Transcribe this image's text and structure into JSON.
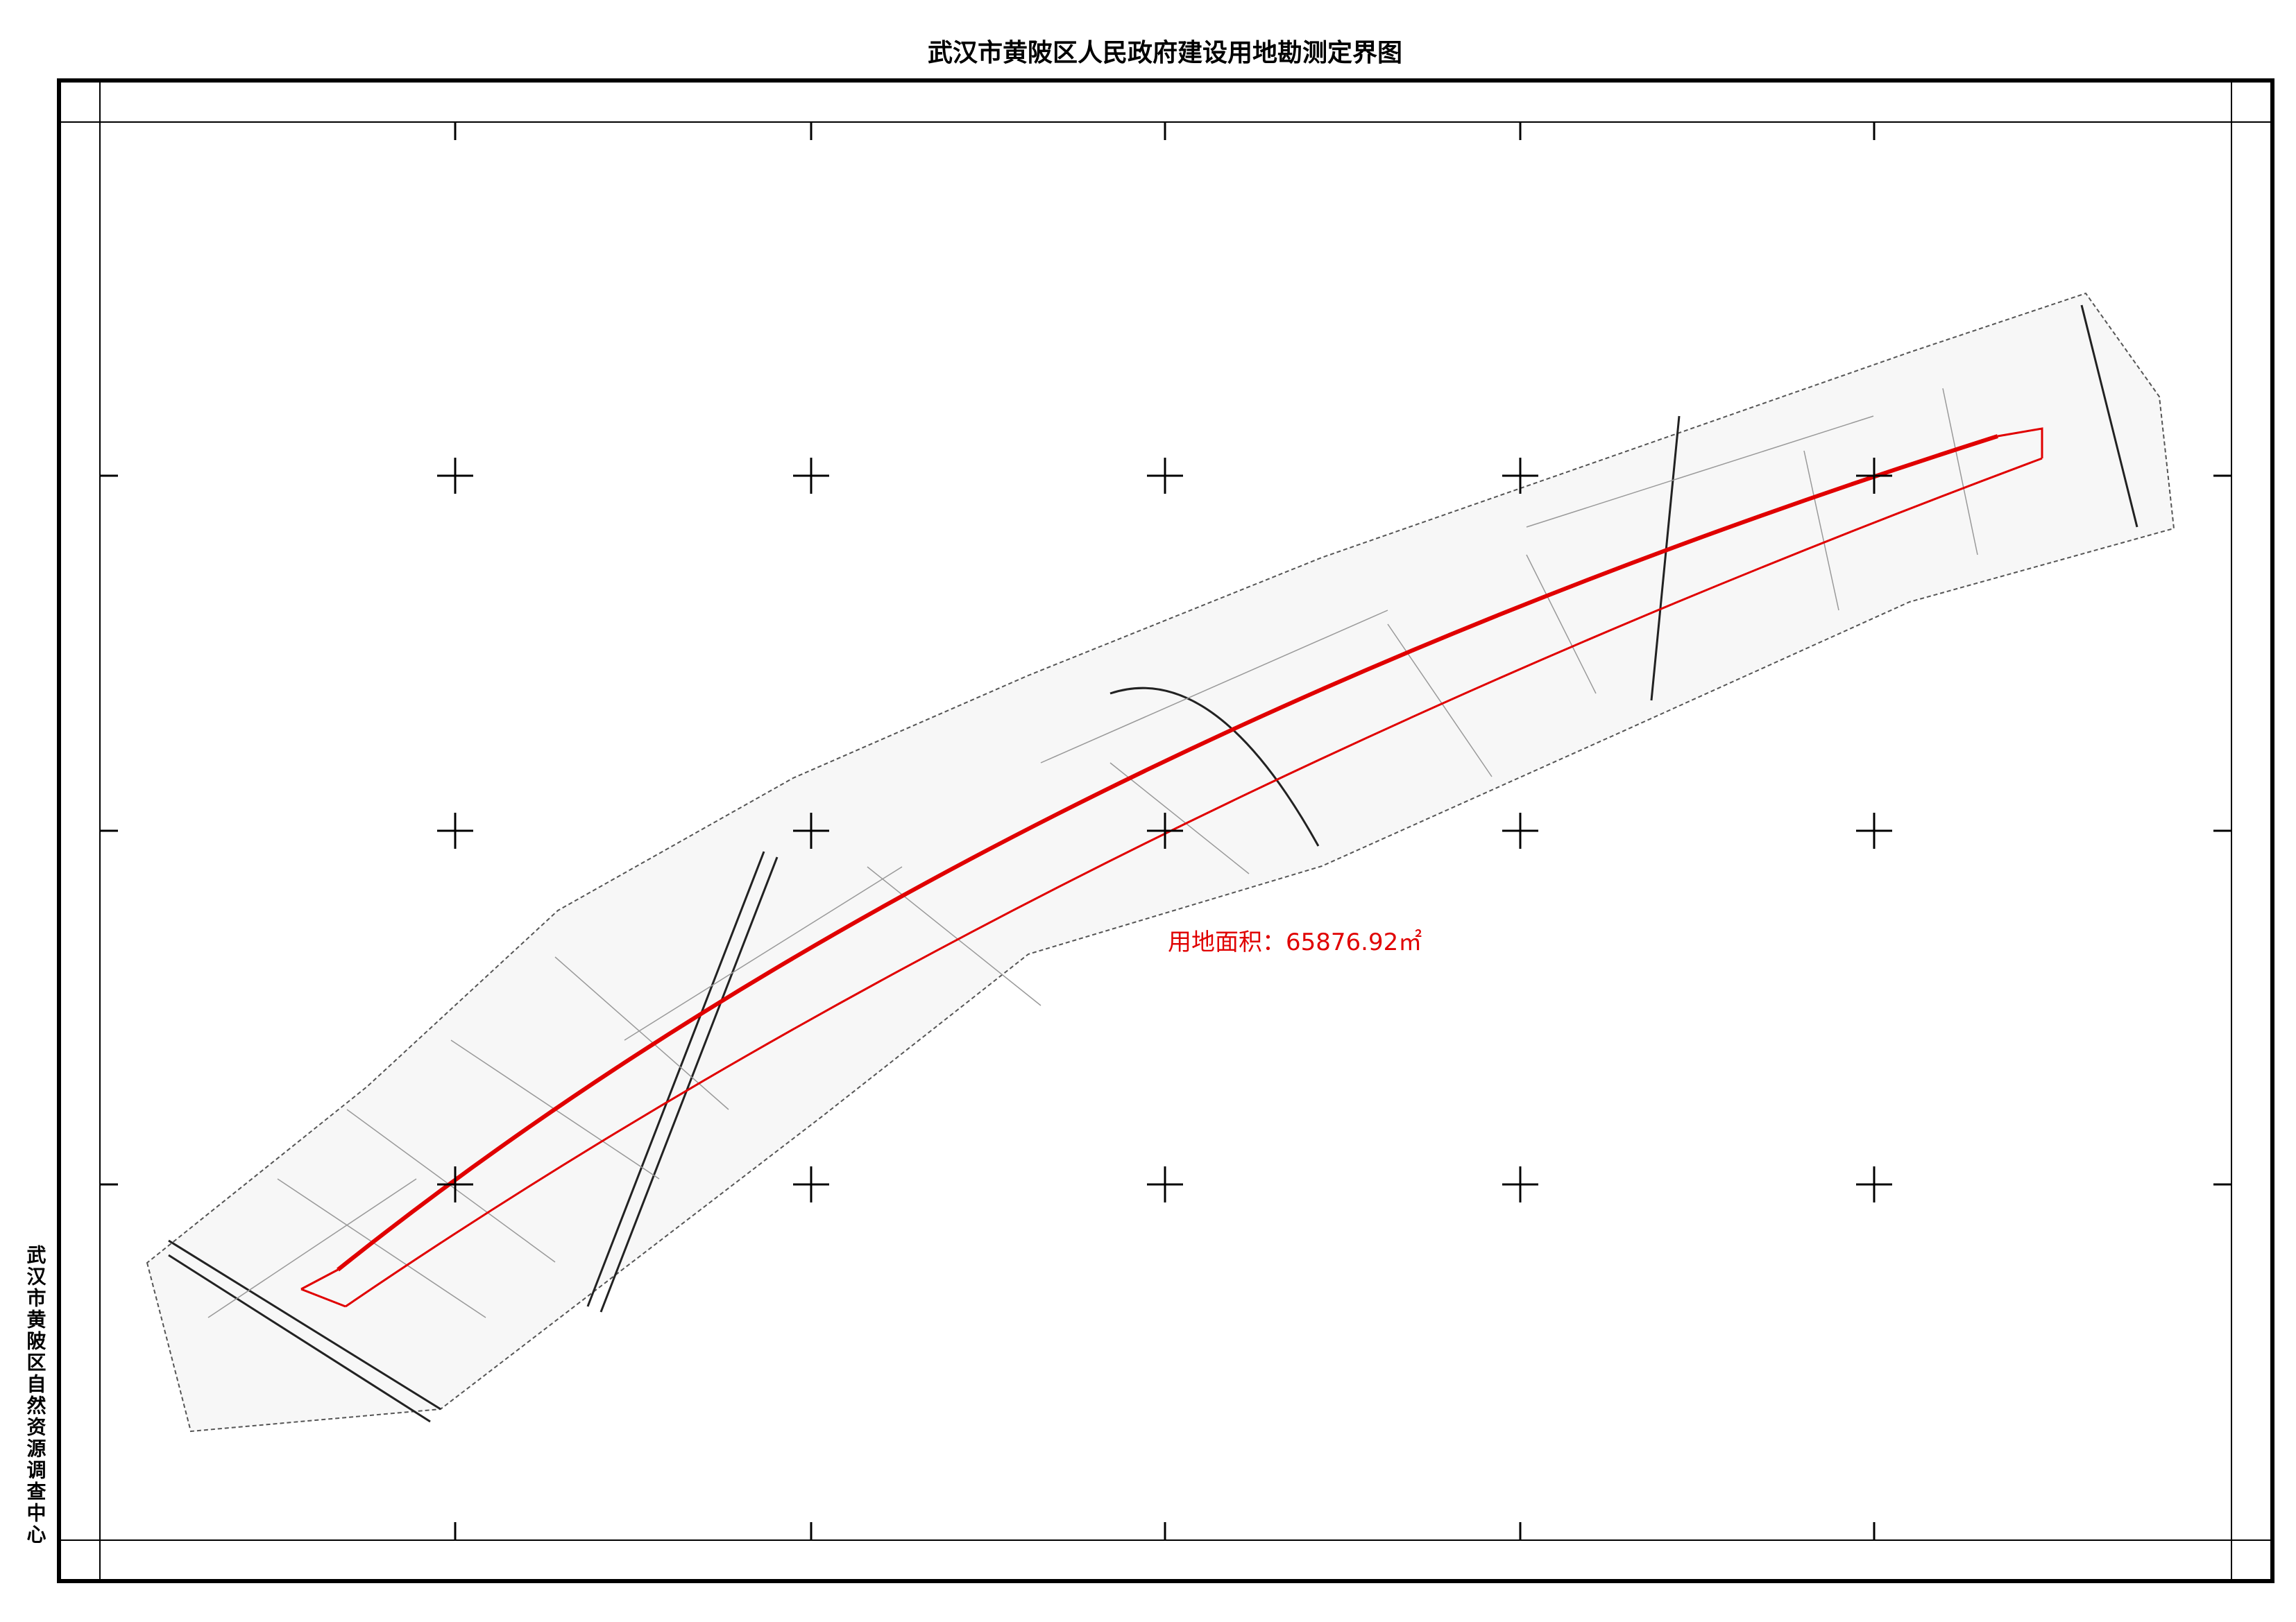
{
  "header": {
    "title": "武汉市黄陂区人民政府建设用地勘测定界图"
  },
  "side_label": "武汉市黄陂区自然资源调查中心",
  "annotation": "用地面积：65876.92㎡"
}
